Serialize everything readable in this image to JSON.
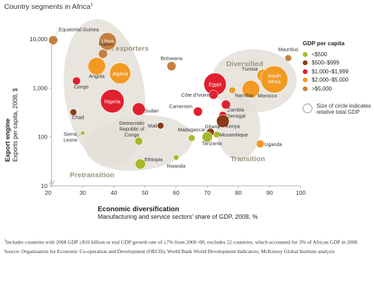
{
  "title": "Country segments in Africa",
  "title_footnote_mark": "1",
  "legend": {
    "title": "GDP per capita",
    "items": [
      {
        "label": "<$500",
        "color": "#a8b82c"
      },
      {
        "label": "$500–$999",
        "color": "#8a3a14"
      },
      {
        "label": "$1,000–$1,999",
        "color": "#e0202e"
      },
      {
        "label": "$2,000–$5,000",
        "color": "#f29a22"
      },
      {
        "label": ">$5,000",
        "color": "#c5803f"
      }
    ],
    "size_note": "Size of circle indicates relative total GDP"
  },
  "footnote": {
    "mark": "1",
    "text": "Includes countries with 2008 GDP ≥$10 billion or real GDP growth rate of ≥7% from 2000–08; excludes 22 countries, which accounted for 3% of African GDP in 2008.",
    "source": "Source: Organisation for Economic Co-operation and Development (OECD); World Bank World Development Indicators; McKinsey Global Institute analysis"
  },
  "chart_data": {
    "type": "scatter",
    "xlabel": "Economic diversification",
    "xlabel_sub": "Manufacturing and service sectors’ share of GDP, 2008, %",
    "ylabel": "Export engine",
    "ylabel_sub": "Exports per capita, 2008, $",
    "xlim": [
      20,
      100
    ],
    "x_ticks": [
      "20",
      "30",
      "40",
      "50",
      "60",
      "70",
      "80",
      "90",
      "100"
    ],
    "y_scale": "log",
    "ylim": [
      10,
      10000
    ],
    "y_ticks": [
      "10,000",
      "1,000",
      "100",
      "10"
    ],
    "regions": [
      {
        "name": "Oil exporters"
      },
      {
        "name": "Diversified"
      },
      {
        "name": "Pretransition"
      },
      {
        "name": "Transition"
      }
    ],
    "points": [
      {
        "label": "Equatorial Guinea",
        "x": 20.5,
        "y": 9500,
        "color": "#c5803f",
        "size": 2.5
      },
      {
        "label": "Libya",
        "x": 38,
        "y": 9000,
        "color": "#c5803f",
        "size": 6
      },
      {
        "label": "Gabon",
        "x": 36.5,
        "y": 5000,
        "color": "#c5803f",
        "size": 2.5
      },
      {
        "label": "Angola",
        "x": 34.5,
        "y": 2800,
        "color": "#f29a22",
        "size": 6
      },
      {
        "label": "Algeria",
        "x": 42,
        "y": 2000,
        "color": "#f29a22",
        "size": 7.5
      },
      {
        "label": "Congo",
        "x": 28,
        "y": 1400,
        "color": "#e0202e",
        "size": 2
      },
      {
        "label": "Nigeria",
        "x": 39.5,
        "y": 540,
        "color": "#e0202e",
        "size": 8.5
      },
      {
        "label": "Chad",
        "x": 27,
        "y": 320,
        "color": "#8a3a14",
        "size": 1.5
      },
      {
        "label": "Sudan",
        "x": 48,
        "y": 370,
        "color": "#e0202e",
        "size": 4
      },
      {
        "label": "Botswana",
        "x": 58.5,
        "y": 2800,
        "color": "#c5803f",
        "size": 2.5
      },
      {
        "label": "Mauritius",
        "x": 96,
        "y": 4100,
        "color": "#c5803f",
        "size": 1.5
      },
      {
        "label": "Egypt",
        "x": 72.5,
        "y": 1200,
        "color": "#e0202e",
        "size": 8
      },
      {
        "label": "Côte d’Ivoire",
        "x": 72,
        "y": 730,
        "color": "#e0202e",
        "size": 2.5
      },
      {
        "label": "Namibia",
        "x": 78,
        "y": 900,
        "color": "#f29a22",
        "size": 1.5
      },
      {
        "label": "Tunisia",
        "x": 88,
        "y": 1800,
        "color": "#f29a22",
        "size": 4
      },
      {
        "label": "South Africa",
        "x": 91.5,
        "y": 1500,
        "color": "#f29a22",
        "size": 10
      },
      {
        "label": "Morocco",
        "x": 84,
        "y": 950,
        "color": "#f29a22",
        "size": 6
      },
      {
        "label": "Cameroon",
        "x": 67,
        "y": 330,
        "color": "#e0202e",
        "size": 2.5
      },
      {
        "label": "Zambia",
        "x": 76,
        "y": 460,
        "color": "#e0202e",
        "size": 2.5
      },
      {
        "label": "Senegal",
        "x": 75,
        "y": 275,
        "color": "#e0202e",
        "size": 2
      },
      {
        "label": "Kenya",
        "x": 75,
        "y": 210,
        "color": "#8a3a14",
        "size": 4
      },
      {
        "label": "Mali",
        "x": 55,
        "y": 170,
        "color": "#8a3a14",
        "size": 1.5
      },
      {
        "label": "Madagascar",
        "x": 65,
        "y": 95,
        "color": "#a8b82c",
        "size": 1.5
      },
      {
        "label": "Ghana",
        "x": 71,
        "y": 125,
        "color": "#8a3a14",
        "size": 2
      },
      {
        "label": "Tanzania",
        "x": 70,
        "y": 100,
        "color": "#a8b82c",
        "size": 3
      },
      {
        "label": "Mozambique",
        "x": 73,
        "y": 112,
        "color": "#a8b82c",
        "size": 1.5
      },
      {
        "label": "Uganda",
        "x": 87,
        "y": 72,
        "color": "#f29a22",
        "size": 2
      },
      {
        "label": "Democratic Republic of Congo",
        "x": 48,
        "y": 82,
        "color": "#a8b82c",
        "size": 2
      },
      {
        "label": "Ethiopia",
        "x": 48.5,
        "y": 28,
        "color": "#a8b82c",
        "size": 3
      },
      {
        "label": "Rwanda",
        "x": 60,
        "y": 38,
        "color": "#a8b82c",
        "size": 1
      },
      {
        "label": "Sierra Leone",
        "x": 30,
        "y": 120,
        "color": "#a8b82c",
        "size": 0.5
      }
    ]
  }
}
